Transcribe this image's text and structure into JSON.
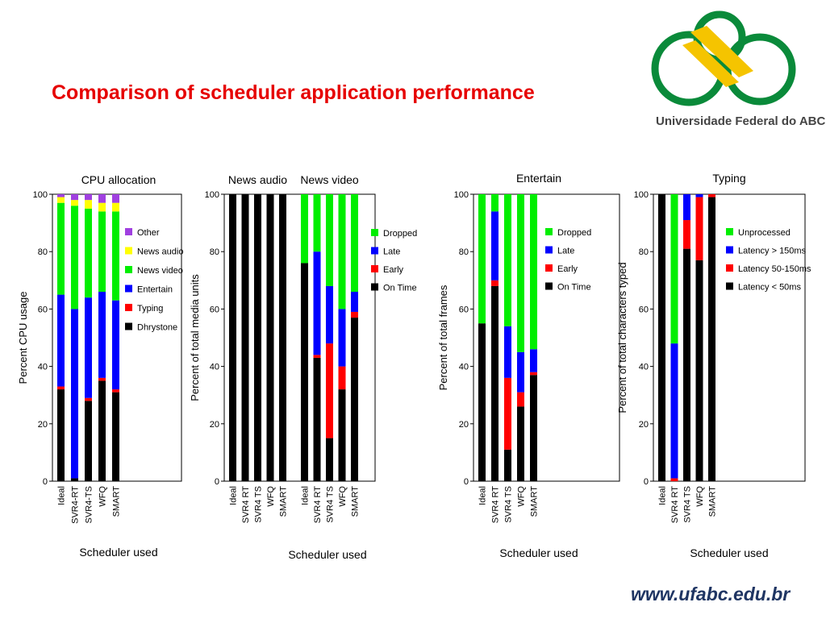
{
  "slide": {
    "title": "Comparison of scheduler application performance",
    "university": "Universidade Federal do ABC",
    "footer_url": "www.ufabc.edu.br"
  },
  "colors": {
    "black": "#000000",
    "red": "#ff0000",
    "blue": "#0000ff",
    "green": "#00ee00",
    "yellow": "#ffff00",
    "purple": "#a040e0",
    "title": "#e60000",
    "logo_green": "#0a8a3a",
    "logo_yellow": "#f5c400",
    "url": "#1f3563"
  },
  "chart_data": [
    {
      "type": "bar",
      "stacked": true,
      "title": "CPU allocation",
      "ylabel": "Percent CPU usage",
      "xlabel": "Scheduler used",
      "ylim": [
        0,
        100
      ],
      "yticks": [
        0,
        20,
        40,
        60,
        80,
        100
      ],
      "categories": [
        "Ideal",
        "SVR4-RT",
        "SVR4-TS",
        "WFQ",
        "SMART"
      ],
      "series": [
        {
          "name": "Dhrystone",
          "color": "#000000",
          "values": [
            32,
            1,
            28,
            35,
            31
          ]
        },
        {
          "name": "Typing",
          "color": "#ff0000",
          "values": [
            1,
            0,
            1,
            1,
            1
          ]
        },
        {
          "name": "Entertain",
          "color": "#0000ff",
          "values": [
            32,
            59,
            35,
            30,
            31
          ]
        },
        {
          "name": "News video",
          "color": "#00ee00",
          "values": [
            32,
            36,
            31,
            28,
            31
          ]
        },
        {
          "name": "News audio",
          "color": "#ffff00",
          "values": [
            2,
            2,
            3,
            3,
            3
          ]
        },
        {
          "name": "Other",
          "color": "#a040e0",
          "values": [
            1,
            2,
            2,
            3,
            3
          ]
        }
      ],
      "legend_order": [
        "Other",
        "News audio",
        "News video",
        "Entertain",
        "Typing",
        "Dhrystone"
      ],
      "legend": "right"
    },
    {
      "type": "bar",
      "stacked": true,
      "title_groups": [
        "News audio",
        "News video"
      ],
      "ylabel": "Percent of total media units",
      "xlabel": "Scheduler used",
      "ylim": [
        0,
        100
      ],
      "yticks": [
        0,
        20,
        40,
        60,
        80,
        100
      ],
      "groups": [
        {
          "title": "News audio",
          "categories": [
            "Ideal",
            "SVR4 RT",
            "SVR4 TS",
            "WFQ",
            "SMART"
          ]
        },
        {
          "title": "News video",
          "categories": [
            "Ideal",
            "SVR4 RT",
            "SVR4 TS",
            "WFQ",
            "SMART"
          ]
        }
      ],
      "series": [
        {
          "name": "On Time",
          "color": "#000000",
          "values": [
            100,
            100,
            100,
            100,
            100,
            76,
            43,
            15,
            32,
            57
          ]
        },
        {
          "name": "Early",
          "color": "#ff0000",
          "values": [
            0,
            0,
            0,
            0,
            0,
            0,
            1,
            33,
            8,
            2
          ]
        },
        {
          "name": "Late",
          "color": "#0000ff",
          "values": [
            0,
            0,
            0,
            0,
            0,
            0,
            36,
            20,
            20,
            7
          ]
        },
        {
          "name": "Dropped",
          "color": "#00ee00",
          "values": [
            0,
            0,
            0,
            0,
            0,
            24,
            20,
            32,
            40,
            34
          ]
        }
      ],
      "legend_order": [
        "Dropped",
        "Late",
        "Early",
        "On Time"
      ],
      "legend": "right"
    },
    {
      "type": "bar",
      "stacked": true,
      "title": "Entertain",
      "ylabel": "Percent of total frames",
      "xlabel": "Scheduler used",
      "ylim": [
        0,
        100
      ],
      "yticks": [
        0,
        20,
        40,
        60,
        80,
        100
      ],
      "categories": [
        "Ideal",
        "SVR4 RT",
        "SVR4 TS",
        "WFQ",
        "SMART"
      ],
      "series": [
        {
          "name": "On Time",
          "color": "#000000",
          "values": [
            55,
            68,
            11,
            26,
            37
          ]
        },
        {
          "name": "Early",
          "color": "#ff0000",
          "values": [
            0,
            2,
            25,
            5,
            1
          ]
        },
        {
          "name": "Late",
          "color": "#0000ff",
          "values": [
            0,
            24,
            18,
            14,
            8
          ]
        },
        {
          "name": "Dropped",
          "color": "#00ee00",
          "values": [
            45,
            6,
            46,
            55,
            54
          ]
        }
      ],
      "legend_order": [
        "Dropped",
        "Late",
        "Early",
        "On Time"
      ],
      "legend": "right"
    },
    {
      "type": "bar",
      "stacked": true,
      "title": "Typing",
      "ylabel": "Percent of total characters typed",
      "xlabel": "Scheduler used",
      "ylim": [
        0,
        100
      ],
      "yticks": [
        0,
        20,
        40,
        60,
        80,
        100
      ],
      "categories": [
        "Ideal",
        "SVR4 RT",
        "SVR4 TS",
        "WFQ",
        "SMART"
      ],
      "series": [
        {
          "name": "Latency < 50ms",
          "color": "#000000",
          "values": [
            100,
            0,
            81,
            77,
            99
          ]
        },
        {
          "name": "Latency 50-150ms",
          "color": "#ff0000",
          "values": [
            0,
            1,
            10,
            22,
            1
          ]
        },
        {
          "name": "Latency > 150ms",
          "color": "#0000ff",
          "values": [
            0,
            47,
            9,
            1,
            0
          ]
        },
        {
          "name": "Unprocessed",
          "color": "#00ee00",
          "values": [
            0,
            52,
            0,
            0,
            0
          ]
        }
      ],
      "legend_order": [
        "Unprocessed",
        "Latency > 150ms",
        "Latency 50-150ms",
        "Latency < 50ms"
      ],
      "legend": "right"
    }
  ]
}
